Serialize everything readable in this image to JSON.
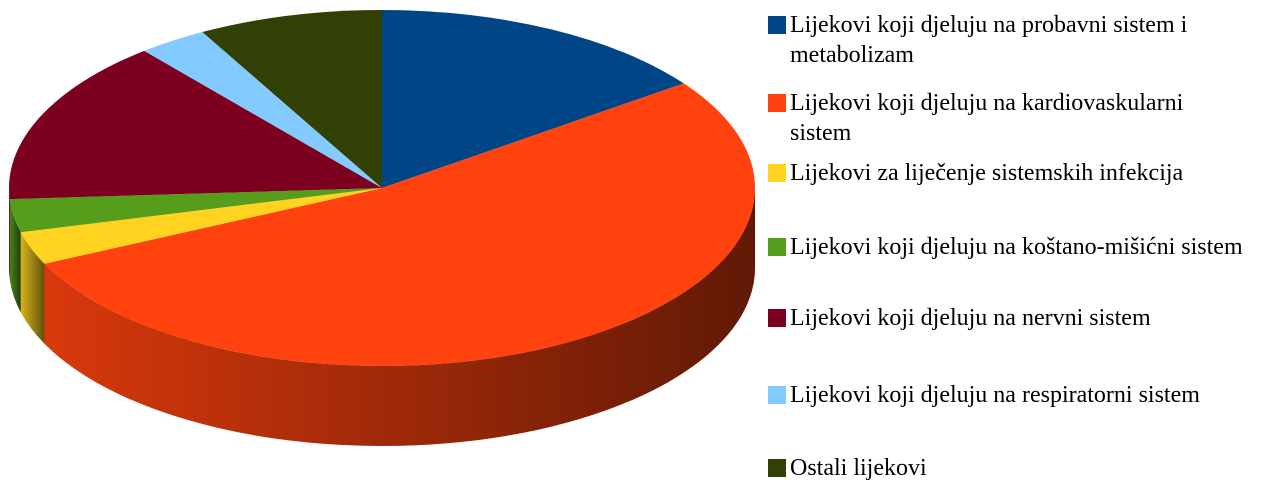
{
  "chart_data": {
    "type": "pie",
    "categories": [
      "Lijekovi koji djeluju na probavni sistem i metabolizam",
      "Lijekovi koji djeluju na kardiovaskularni sistem",
      "Lijekovi za liječenje sistemskih infekcija",
      "Lijekovi koji djeluju na koštano-mišićni sistem",
      "Lijekovi koji djeluju na nervni sistem",
      "Lijekovi koji djeluju na respiratorni sistem",
      "Ostali lijekovi"
    ],
    "values": [
      15,
      53,
      3,
      3,
      15,
      3,
      8
    ],
    "colors": [
      "#004586",
      "#ff420e",
      "#ffd320",
      "#579d1c",
      "#7e0021",
      "#83caff",
      "#314004"
    ],
    "legend": "right"
  }
}
